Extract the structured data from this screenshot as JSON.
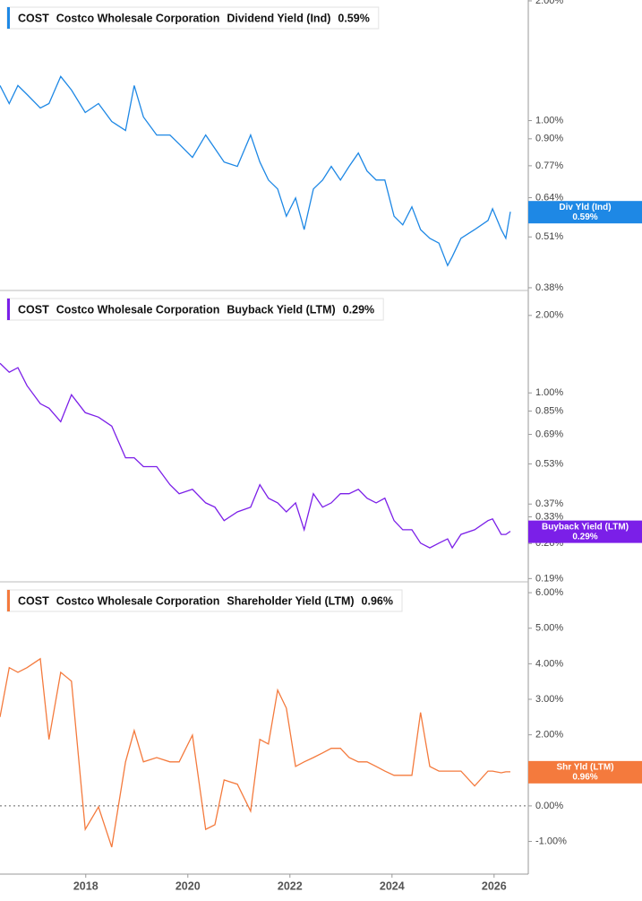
{
  "chart_data": [
    {
      "type": "line",
      "ticker": "COST",
      "company": "Costco Wholesale Corporation",
      "last_value_label": "0.59%",
      "tag_name": "Div Yld (Ind)",
      "log_scale": true,
      "x": [
        2016.32,
        2016.5,
        2016.67,
        2016.85,
        2017.11,
        2017.28,
        2017.51,
        2017.72,
        2017.99,
        2018.25,
        2018.51,
        2018.78,
        2018.95,
        2019.13,
        2019.39,
        2019.65,
        2019.83,
        2020.09,
        2020.35,
        2020.53,
        2020.71,
        2020.97,
        2021.23,
        2021.41,
        2021.58,
        2021.76,
        2021.93,
        2022.11,
        2022.28,
        2022.46,
        2022.64,
        2022.81,
        2022.99,
        2023.16,
        2023.34,
        2023.51,
        2023.69,
        2023.86,
        2024.04,
        2024.21,
        2024.39,
        2024.56,
        2024.74,
        2024.92,
        2025.09,
        2025.18,
        2025.35,
        2025.62,
        2025.88,
        2025.97,
        2026.14,
        2026.23,
        2026.32
      ],
      "series": [
        {
          "name": "Dividend Yield (Ind)",
          "color": "#1e88e5",
          "values": [
            1.225,
            1.104,
            1.225,
            1.163,
            1.076,
            1.104,
            1.291,
            1.194,
            1.048,
            1.104,
            0.995,
            0.944,
            1.225,
            1.021,
            0.92,
            0.92,
            0.873,
            0.808,
            0.92,
            0.851,
            0.787,
            0.767,
            0.92,
            0.787,
            0.709,
            0.673,
            0.575,
            0.639,
            0.532,
            0.673,
            0.709,
            0.767,
            0.709,
            0.767,
            0.829,
            0.747,
            0.709,
            0.709,
            0.575,
            0.547,
            0.607,
            0.532,
            0.506,
            0.492,
            0.432,
            0.455,
            0.506,
            0.532,
            0.561,
            0.6,
            0.532,
            0.506,
            0.59
          ]
        }
      ],
      "xlim": [
        2016.32,
        2026.67
      ],
      "ylim": [
        0.376,
        2.01
      ],
      "yticks": [
        {
          "value": 2,
          "label": "2.00%"
        },
        {
          "value": 1,
          "label": "1.00%"
        },
        {
          "value": 0.9,
          "label": "0.90%"
        },
        {
          "value": 0.77,
          "label": "0.77%"
        },
        {
          "value": 0.64,
          "label": "0.64%"
        },
        {
          "value": 0.51,
          "label": "0.51%"
        },
        {
          "value": 0.38,
          "label": "0.38%"
        }
      ]
    },
    {
      "type": "line",
      "ticker": "COST",
      "company": "Costco Wholesale Corporation",
      "last_value_label": "0.29%",
      "tag_name": "Buyback Yield (LTM)",
      "log_scale": true,
      "x": [
        2016.32,
        2016.5,
        2016.67,
        2016.85,
        2017.11,
        2017.28,
        2017.51,
        2017.72,
        2017.99,
        2018.25,
        2018.51,
        2018.78,
        2018.95,
        2019.13,
        2019.39,
        2019.65,
        2019.83,
        2020.09,
        2020.35,
        2020.53,
        2020.71,
        2020.97,
        2021.23,
        2021.41,
        2021.58,
        2021.76,
        2021.93,
        2022.11,
        2022.28,
        2022.46,
        2022.64,
        2022.81,
        2022.99,
        2023.16,
        2023.34,
        2023.51,
        2023.69,
        2023.86,
        2024.04,
        2024.21,
        2024.39,
        2024.56,
        2024.74,
        2024.92,
        2025.09,
        2025.18,
        2025.35,
        2025.62,
        2025.88,
        2025.97,
        2026.14,
        2026.23,
        2026.32
      ],
      "series": [
        {
          "name": "Buyback Yield (LTM)",
          "color": "#7b1fe8",
          "values": [
            1.304,
            1.203,
            1.253,
            1.067,
            0.908,
            0.872,
            0.773,
            0.984,
            0.838,
            0.805,
            0.743,
            0.56,
            0.56,
            0.517,
            0.517,
            0.44,
            0.406,
            0.422,
            0.374,
            0.36,
            0.319,
            0.345,
            0.36,
            0.44,
            0.39,
            0.374,
            0.345,
            0.374,
            0.294,
            0.406,
            0.36,
            0.374,
            0.406,
            0.406,
            0.422,
            0.39,
            0.374,
            0.39,
            0.319,
            0.294,
            0.294,
            0.261,
            0.25,
            0.261,
            0.271,
            0.25,
            0.282,
            0.294,
            0.319,
            0.324,
            0.282,
            0.282,
            0.29
          ]
        }
      ],
      "xlim": [
        2016.32,
        2026.67
      ],
      "ylim": [
        0.186,
        2.48
      ],
      "yticks": [
        {
          "value": 2,
          "label": "2.00%"
        },
        {
          "value": 1,
          "label": "1.00%"
        },
        {
          "value": 0.85,
          "label": "0.85%"
        },
        {
          "value": 0.69,
          "label": "0.69%"
        },
        {
          "value": 0.53,
          "label": "0.53%"
        },
        {
          "value": 0.37,
          "label": "0.37%"
        },
        {
          "value": 0.33,
          "label": "0.33%"
        },
        {
          "value": 0.26,
          "label": "0.26%"
        },
        {
          "value": 0.19,
          "label": "0.19%"
        }
      ]
    },
    {
      "type": "line",
      "ticker": "COST",
      "company": "Costco Wholesale Corporation",
      "last_value_label": "0.96%",
      "tag_name": "Shr Yld (LTM)",
      "log_scale": false,
      "zero_line": true,
      "x": [
        2016.32,
        2016.5,
        2016.67,
        2016.85,
        2017.11,
        2017.28,
        2017.51,
        2017.72,
        2017.99,
        2018.25,
        2018.51,
        2018.78,
        2018.95,
        2019.13,
        2019.39,
        2019.65,
        2019.83,
        2020.09,
        2020.35,
        2020.53,
        2020.71,
        2020.97,
        2021.23,
        2021.41,
        2021.58,
        2021.76,
        2021.93,
        2022.11,
        2022.28,
        2022.46,
        2022.64,
        2022.81,
        2022.99,
        2023.16,
        2023.34,
        2023.51,
        2023.69,
        2023.86,
        2024.04,
        2024.21,
        2024.39,
        2024.56,
        2024.74,
        2024.92,
        2025.09,
        2025.18,
        2025.35,
        2025.62,
        2025.88,
        2025.97,
        2026.14,
        2026.23,
        2026.32
      ],
      "series": [
        {
          "name": "Shareholder Yield (LTM)",
          "color": "#f47a3d",
          "values": [
            2.5,
            3.89,
            3.76,
            3.89,
            4.14,
            1.87,
            3.76,
            3.51,
            -0.66,
            -0.03,
            -1.16,
            1.24,
            2.12,
            1.24,
            1.36,
            1.24,
            1.24,
            1.99,
            -0.66,
            -0.53,
            0.73,
            0.61,
            -0.15,
            1.87,
            1.74,
            3.26,
            2.75,
            1.11,
            1.24,
            1.36,
            1.49,
            1.62,
            1.62,
            1.36,
            1.24,
            1.24,
            1.11,
            0.98,
            0.86,
            0.86,
            0.86,
            2.63,
            1.11,
            0.98,
            0.98,
            0.98,
            0.98,
            0.56,
            0.98,
            0.98,
            0.93,
            0.96,
            0.96
          ]
        }
      ],
      "xlim": [
        2016.32,
        2026.67
      ],
      "ylim": [
        -1.92,
        6.28
      ],
      "yticks": [
        {
          "value": 6,
          "label": "6.00%"
        },
        {
          "value": 5,
          "label": "5.00%"
        },
        {
          "value": 4,
          "label": "4.00%"
        },
        {
          "value": 3,
          "label": "3.00%"
        },
        {
          "value": 2,
          "label": "2.00%"
        },
        {
          "value": 1,
          "label": "1.00%"
        },
        {
          "value": 0,
          "label": "0.00%"
        },
        {
          "value": -1,
          "label": "-1.00%"
        }
      ],
      "xticks": [
        2018,
        2020,
        2022,
        2024,
        2026
      ]
    }
  ]
}
